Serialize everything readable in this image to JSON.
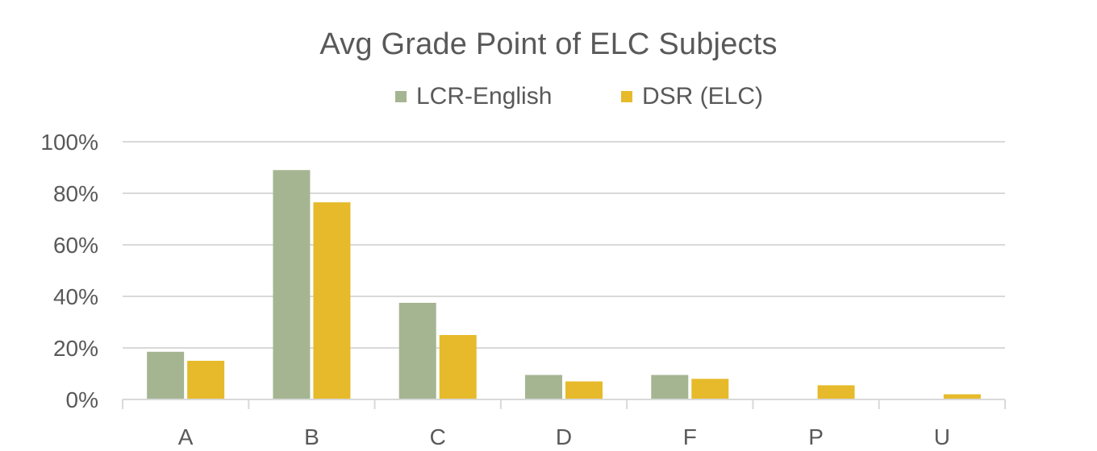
{
  "chart_data": {
    "type": "bar",
    "title": "Avg Grade Point of ELC Subjects",
    "xlabel": "",
    "ylabel": "",
    "categories": [
      "A",
      "B",
      "C",
      "D",
      "F",
      "P",
      "U"
    ],
    "series": [
      {
        "name": "LCR-English",
        "color": "#a5b592",
        "values": [
          18.5,
          89,
          37.5,
          9.5,
          9.5,
          0,
          0
        ]
      },
      {
        "name": "DSR (ELC)",
        "color": "#e6ba2a",
        "values": [
          15,
          76.5,
          25,
          7,
          8,
          5.5,
          2
        ]
      }
    ],
    "ylim": [
      0,
      100
    ],
    "yticks": [
      "0%",
      "20%",
      "40%",
      "60%",
      "80%",
      "100%"
    ],
    "ytick_values": [
      0,
      20,
      40,
      60,
      80,
      100
    ],
    "grid": true,
    "legend_position": "top"
  }
}
